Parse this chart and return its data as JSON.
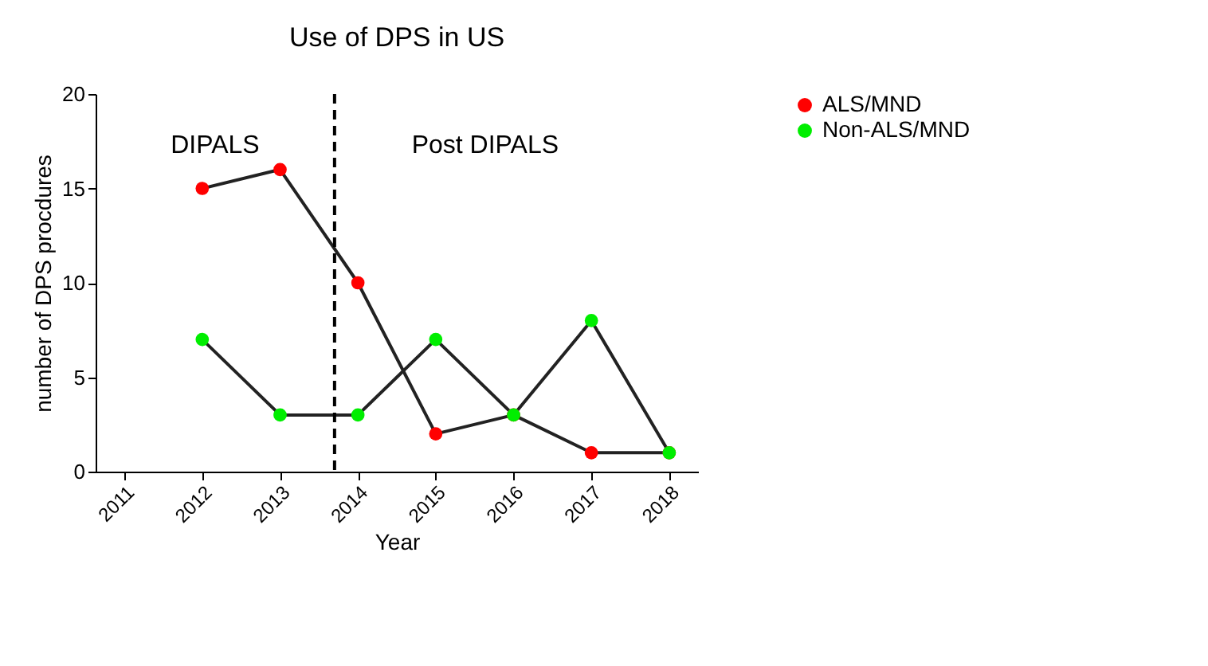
{
  "chart_data": {
    "type": "line",
    "title": "Use of DPS in US",
    "xlabel": "Year",
    "ylabel": "number of DPS procdures",
    "x": [
      2012,
      2013,
      2014,
      2015,
      2016,
      2017,
      2018
    ],
    "series": [
      {
        "name": "ALS/MND",
        "color": "#ff0000",
        "values": [
          15,
          16,
          10,
          2,
          3,
          1,
          1
        ]
      },
      {
        "name": "Non-ALS/MND",
        "color": "#00ee00",
        "values": [
          7,
          3,
          3,
          7,
          3,
          8,
          1
        ]
      }
    ],
    "xlim": [
      2010.63,
      2018.37
    ],
    "xticks": [
      2011,
      2012,
      2013,
      2014,
      2015,
      2016,
      2017,
      2018
    ],
    "ylim": [
      0,
      20
    ],
    "yticks": [
      0,
      5,
      10,
      15,
      20
    ],
    "ref_lines": [
      {
        "axis": "x",
        "value": 2013.7,
        "label": null,
        "color": "#000000",
        "line_style": "dashed"
      }
    ],
    "annotations": [
      "DIPALS",
      "Post DIPALS"
    ],
    "marker": "circle",
    "line_style": "solid",
    "grid": false,
    "legend": "top right"
  }
}
